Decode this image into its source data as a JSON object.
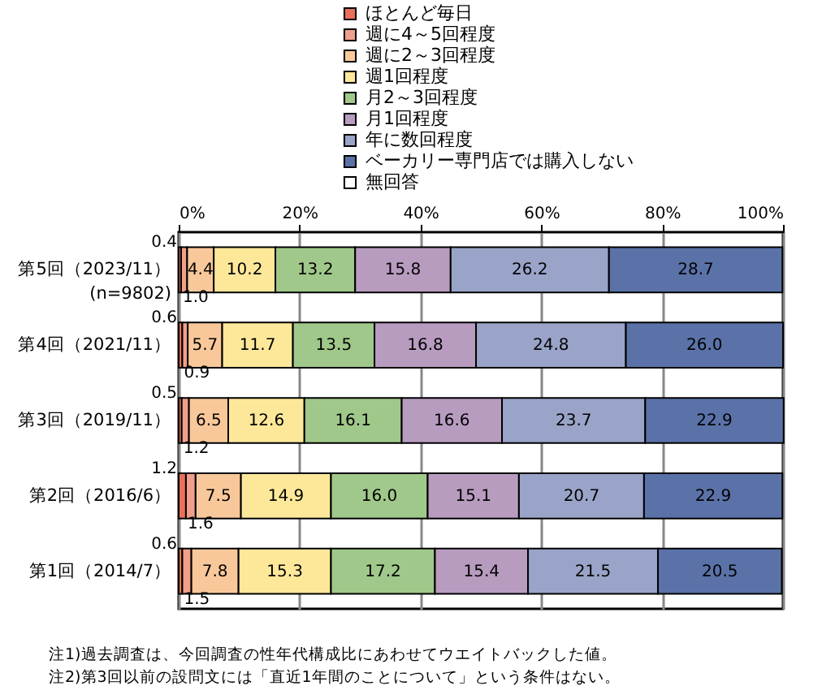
{
  "chart_data": {
    "type": "bar",
    "orientation": "horizontal",
    "stacked": true,
    "grid": "x",
    "legend": "top",
    "categories": [
      "第5回（2023/11）\n(n=9802)",
      "第4回（2021/11）",
      "第3回（2019/11）",
      "第2回（2016/6）",
      "第1回（2014/7）"
    ],
    "xlim": [
      0,
      100
    ],
    "xticks": [
      {
        "value": 0,
        "label": "0%"
      },
      {
        "value": 20,
        "label": "20%"
      },
      {
        "value": 40,
        "label": "40%"
      },
      {
        "value": 60,
        "label": "60%"
      },
      {
        "value": 80,
        "label": "80%"
      },
      {
        "value": 100,
        "label": "100%"
      }
    ],
    "series": [
      {
        "name": "ほとんど毎日",
        "color": "#e8705a",
        "values": [
          0.4,
          0.6,
          0.5,
          1.2,
          0.6
        ],
        "value_labels": [
          "0.4",
          "0.6",
          "0.5",
          "1.2",
          "0.6"
        ]
      },
      {
        "name": "週に4～5回程度",
        "color": "#f0a08a",
        "values": [
          1.0,
          0.9,
          1.2,
          1.6,
          1.5
        ],
        "value_labels": [
          "1.0",
          "0.9",
          "1.2",
          "1.6",
          "1.5"
        ]
      },
      {
        "name": "週に2～3回程度",
        "color": "#f9c89a",
        "values": [
          4.4,
          5.7,
          6.5,
          7.5,
          7.8
        ],
        "value_labels": [
          "4.4",
          "5.7",
          "6.5",
          "7.5",
          "7.8"
        ]
      },
      {
        "name": "週1回程度",
        "color": "#fde89a",
        "values": [
          10.2,
          11.7,
          12.6,
          14.9,
          15.3
        ],
        "value_labels": [
          "10.2",
          "11.7",
          "12.6",
          "14.9",
          "15.3"
        ]
      },
      {
        "name": "月2～3回程度",
        "color": "#a0c88a",
        "values": [
          13.2,
          13.5,
          16.1,
          16.0,
          17.2
        ],
        "value_labels": [
          "13.2",
          "13.5",
          "16.1",
          "16.0",
          "17.2"
        ]
      },
      {
        "name": "月1回程度",
        "color": "#b89cc0",
        "values": [
          15.8,
          16.8,
          16.6,
          15.1,
          15.4
        ],
        "value_labels": [
          "15.8",
          "16.8",
          "16.6",
          "15.1",
          "15.4"
        ]
      },
      {
        "name": "年に数回程度",
        "color": "#9aa4c8",
        "values": [
          26.2,
          24.8,
          23.7,
          20.7,
          21.5
        ],
        "value_labels": [
          "26.2",
          "24.8",
          "23.7",
          "20.7",
          "21.5"
        ]
      },
      {
        "name": "ベーカリー専門店では購入しない",
        "color": "#5a72a8",
        "values": [
          28.7,
          26.0,
          22.9,
          22.9,
          20.5
        ],
        "value_labels": [
          "28.7",
          "26.0",
          "22.9",
          "22.9",
          "20.5"
        ]
      },
      {
        "name": "無回答",
        "color": "#ffffff",
        "values": [
          null,
          null,
          null,
          null,
          null
        ]
      }
    ],
    "annotations": [
      "注1)過去調査は、今回調査の性年代構成比にあわせてウエイトバックした値。",
      "注2)第3回以前の設問文には「直近1年間のことについて」という条件はない。"
    ]
  }
}
